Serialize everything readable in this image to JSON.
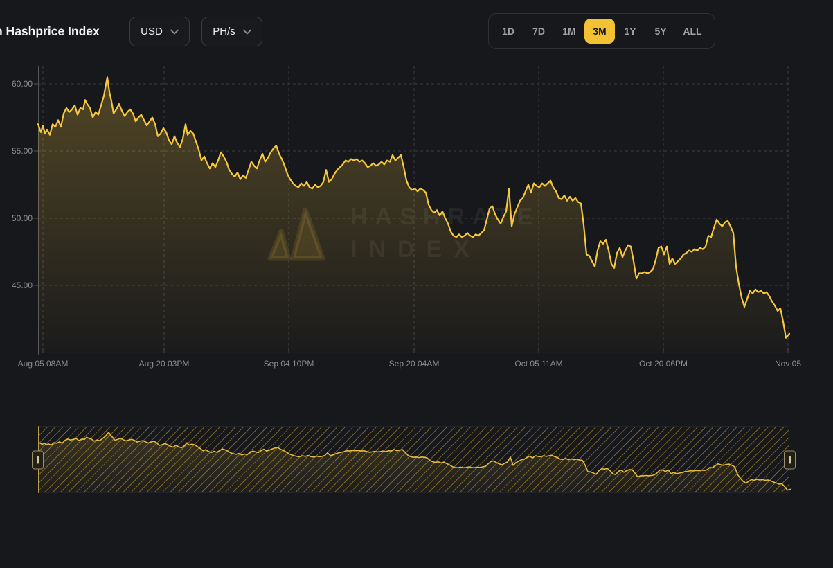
{
  "header": {
    "title": "n Hashprice Index",
    "currency_dropdown": {
      "value": "USD"
    },
    "unit_dropdown": {
      "value": "PH/s"
    },
    "range_buttons": [
      {
        "label": "1D",
        "active": false
      },
      {
        "label": "7D",
        "active": false
      },
      {
        "label": "1M",
        "active": false
      },
      {
        "label": "3M",
        "active": true
      },
      {
        "label": "1Y",
        "active": false
      },
      {
        "label": "5Y",
        "active": false
      },
      {
        "label": "ALL",
        "active": false
      }
    ]
  },
  "watermark": {
    "line1": "HASHRATE",
    "line2": "INDEX"
  },
  "colors": {
    "background": "#17181B",
    "accent_yellow": "#F2C233",
    "line_yellow": "#F7C83F",
    "navigator_line": "#E7BC3A",
    "grid": "#3C3D41",
    "axis_line": "#53545A",
    "axis_text": "#8B8D91",
    "active_button_text": "#1B1C1E",
    "inactive_button_text": "#A0A2A7"
  },
  "chart_data": {
    "type": "line",
    "title": "",
    "xlabel": "",
    "ylabel": "",
    "grid": "dashed",
    "legend": "none",
    "ylim": [
      40,
      61.3
    ],
    "y_axis": {
      "ticks": [
        {
          "label": "60.00",
          "value": 60
        },
        {
          "label": "55.00",
          "value": 55
        },
        {
          "label": "50.00",
          "value": 50
        },
        {
          "label": "45.00",
          "value": 45
        }
      ]
    },
    "x_axis": {
      "ticks": [
        {
          "label": "Aug 05 08AM",
          "x": 62
        },
        {
          "label": "Aug 20 03PM",
          "x": 237
        },
        {
          "label": "Sep 04 10PM",
          "x": 417
        },
        {
          "label": "Sep 20 04AM",
          "x": 598
        },
        {
          "label": "Oct 05 11AM",
          "x": 778
        },
        {
          "label": "Oct 20 06PM",
          "x": 958
        },
        {
          "label": "Nov 05",
          "x": 1138
        }
      ]
    },
    "series": [
      {
        "name": "hashprice",
        "points": [
          [
            55,
            57
          ],
          [
            59,
            56.4
          ],
          [
            62,
            56.9
          ],
          [
            65,
            56.3
          ],
          [
            68,
            56.6
          ],
          [
            72,
            56.2
          ],
          [
            76,
            57
          ],
          [
            80,
            56.8
          ],
          [
            84,
            57.3
          ],
          [
            88,
            56.8
          ],
          [
            92,
            57.8
          ],
          [
            96,
            58.2
          ],
          [
            100,
            57.9
          ],
          [
            104,
            58.1
          ],
          [
            108,
            58.4
          ],
          [
            112,
            57.7
          ],
          [
            116,
            58.2
          ],
          [
            120,
            58.1
          ],
          [
            123,
            58.8
          ],
          [
            126,
            58.5
          ],
          [
            130,
            58.2
          ],
          [
            134,
            57.5
          ],
          [
            138,
            57.9
          ],
          [
            142,
            57.7
          ],
          [
            146,
            58.4
          ],
          [
            150,
            59.1
          ],
          [
            155,
            60.5
          ],
          [
            158,
            59.4
          ],
          [
            161,
            58.7
          ],
          [
            164,
            57.8
          ],
          [
            168,
            58.1
          ],
          [
            172,
            58.5
          ],
          [
            176,
            58
          ],
          [
            180,
            57.6
          ],
          [
            184,
            57.9
          ],
          [
            188,
            58.1
          ],
          [
            192,
            57.8
          ],
          [
            196,
            57.2
          ],
          [
            200,
            57.5
          ],
          [
            204,
            57.7
          ],
          [
            208,
            57.3
          ],
          [
            212,
            56.9
          ],
          [
            216,
            57.2
          ],
          [
            220,
            57.5
          ],
          [
            224,
            57
          ],
          [
            228,
            56.1
          ],
          [
            232,
            56.3
          ],
          [
            236,
            56.7
          ],
          [
            240,
            56.4
          ],
          [
            244,
            55.8
          ],
          [
            248,
            55.5
          ],
          [
            252,
            56.1
          ],
          [
            256,
            55.6
          ],
          [
            260,
            55.3
          ],
          [
            264,
            55.9
          ],
          [
            268,
            57
          ],
          [
            271,
            56.2
          ],
          [
            275,
            56.5
          ],
          [
            279,
            56.3
          ],
          [
            283,
            55.7
          ],
          [
            287,
            55.1
          ],
          [
            291,
            54.3
          ],
          [
            295,
            54.6
          ],
          [
            299,
            54.1
          ],
          [
            303,
            53.7
          ],
          [
            307,
            54.1
          ],
          [
            311,
            53.8
          ],
          [
            315,
            54.3
          ],
          [
            319,
            54.9
          ],
          [
            323,
            54.6
          ],
          [
            327,
            54.2
          ],
          [
            331,
            53.6
          ],
          [
            335,
            53.3
          ],
          [
            339,
            53.1
          ],
          [
            343,
            53.4
          ],
          [
            347,
            52.9
          ],
          [
            351,
            53.2
          ],
          [
            355,
            53
          ],
          [
            359,
            53.6
          ],
          [
            363,
            54.2
          ],
          [
            367,
            53.9
          ],
          [
            371,
            53.7
          ],
          [
            375,
            54.3
          ],
          [
            379,
            54.8
          ],
          [
            383,
            54.2
          ],
          [
            387,
            54.5
          ],
          [
            391,
            54.9
          ],
          [
            395,
            55.2
          ],
          [
            399,
            55.4
          ],
          [
            403,
            54.8
          ],
          [
            407,
            54.4
          ],
          [
            411,
            53.9
          ],
          [
            415,
            53.3
          ],
          [
            419,
            52.9
          ],
          [
            423,
            52.6
          ],
          [
            427,
            52.4
          ],
          [
            431,
            52.3
          ],
          [
            435,
            52.6
          ],
          [
            439,
            52.4
          ],
          [
            443,
            52.7
          ],
          [
            447,
            52.3
          ],
          [
            451,
            52.2
          ],
          [
            455,
            52.5
          ],
          [
            459,
            52.3
          ],
          [
            463,
            52.4
          ],
          [
            467,
            52.7
          ],
          [
            471,
            53.6
          ],
          [
            475,
            52.7
          ],
          [
            479,
            52.9
          ],
          [
            483,
            53.3
          ],
          [
            487,
            53.6
          ],
          [
            491,
            53.8
          ],
          [
            495,
            54
          ],
          [
            499,
            54.3
          ],
          [
            503,
            54.2
          ],
          [
            507,
            54.4
          ],
          [
            511,
            54.3
          ],
          [
            515,
            54.4
          ],
          [
            519,
            54.2
          ],
          [
            523,
            54.3
          ],
          [
            527,
            54.1
          ],
          [
            531,
            53.8
          ],
          [
            535,
            53.9
          ],
          [
            539,
            54.1
          ],
          [
            543,
            53.9
          ],
          [
            547,
            54
          ],
          [
            551,
            54.2
          ],
          [
            555,
            54
          ],
          [
            559,
            54.3
          ],
          [
            563,
            54.2
          ],
          [
            567,
            54.7
          ],
          [
            571,
            54.3
          ],
          [
            575,
            54.5
          ],
          [
            579,
            54.7
          ],
          [
            583,
            53.8
          ],
          [
            587,
            52.8
          ],
          [
            591,
            52.3
          ],
          [
            595,
            52.1
          ],
          [
            599,
            52.2
          ],
          [
            603,
            52
          ],
          [
            607,
            52.2
          ],
          [
            611,
            52.1
          ],
          [
            615,
            51.9
          ],
          [
            619,
            51
          ],
          [
            623,
            50.6
          ],
          [
            627,
            50.4
          ],
          [
            631,
            50.6
          ],
          [
            635,
            50.2
          ],
          [
            639,
            50.5
          ],
          [
            643,
            50
          ],
          [
            647,
            49.6
          ],
          [
            651,
            49
          ],
          [
            655,
            48.7
          ],
          [
            659,
            48.6
          ],
          [
            663,
            48.8
          ],
          [
            667,
            48.6
          ],
          [
            671,
            48.7
          ],
          [
            675,
            48.9
          ],
          [
            679,
            48.7
          ],
          [
            683,
            48.6
          ],
          [
            687,
            48.8
          ],
          [
            691,
            48.7
          ],
          [
            695,
            48.9
          ],
          [
            699,
            49.1
          ],
          [
            703,
            49.9
          ],
          [
            707,
            50.7
          ],
          [
            711,
            50.9
          ],
          [
            715,
            50.3
          ],
          [
            719,
            49.9
          ],
          [
            723,
            49.6
          ],
          [
            727,
            50.1
          ],
          [
            731,
            50.5
          ],
          [
            735,
            52.2
          ],
          [
            739,
            49.4
          ],
          [
            743,
            50.3
          ],
          [
            747,
            50.8
          ],
          [
            751,
            51.3
          ],
          [
            755,
            51.5
          ],
          [
            759,
            52
          ],
          [
            763,
            52.5
          ],
          [
            767,
            51.9
          ],
          [
            771,
            52.6
          ],
          [
            775,
            52.4
          ],
          [
            779,
            52.3
          ],
          [
            783,
            52.6
          ],
          [
            787,
            52.4
          ],
          [
            791,
            52.6
          ],
          [
            795,
            52.8
          ],
          [
            799,
            52.3
          ],
          [
            803,
            52
          ],
          [
            807,
            51.5
          ],
          [
            811,
            51.4
          ],
          [
            815,
            51.7
          ],
          [
            819,
            51.3
          ],
          [
            823,
            51.6
          ],
          [
            827,
            51.3
          ],
          [
            831,
            51.5
          ],
          [
            835,
            51.2
          ],
          [
            839,
            51.1
          ],
          [
            843,
            49.5
          ],
          [
            847,
            47.3
          ],
          [
            851,
            47.2
          ],
          [
            855,
            46.8
          ],
          [
            859,
            46.4
          ],
          [
            863,
            47.6
          ],
          [
            867,
            48.3
          ],
          [
            871,
            48.1
          ],
          [
            875,
            48.4
          ],
          [
            879,
            47.6
          ],
          [
            883,
            46.6
          ],
          [
            887,
            46.3
          ],
          [
            891,
            47.4
          ],
          [
            895,
            47.8
          ],
          [
            899,
            47.1
          ],
          [
            903,
            47.6
          ],
          [
            907,
            48
          ],
          [
            911,
            47.9
          ],
          [
            915,
            46.8
          ],
          [
            919,
            45.5
          ],
          [
            923,
            45.9
          ],
          [
            927,
            45.9
          ],
          [
            931,
            46
          ],
          [
            935,
            45.9
          ],
          [
            939,
            46
          ],
          [
            943,
            46.2
          ],
          [
            947,
            46.9
          ],
          [
            951,
            47.8
          ],
          [
            955,
            47.9
          ],
          [
            959,
            47.3
          ],
          [
            963,
            47.9
          ],
          [
            967,
            46.6
          ],
          [
            971,
            47
          ],
          [
            975,
            46.6
          ],
          [
            979,
            46.8
          ],
          [
            983,
            47
          ],
          [
            987,
            47.3
          ],
          [
            991,
            47.4
          ],
          [
            995,
            47.6
          ],
          [
            999,
            47.5
          ],
          [
            1003,
            47.7
          ],
          [
            1007,
            47.6
          ],
          [
            1011,
            47.8
          ],
          [
            1015,
            47.7
          ],
          [
            1019,
            47.9
          ],
          [
            1023,
            48.7
          ],
          [
            1027,
            48.6
          ],
          [
            1031,
            49.3
          ],
          [
            1035,
            49.9
          ],
          [
            1039,
            49.6
          ],
          [
            1043,
            49.4
          ],
          [
            1047,
            49.7
          ],
          [
            1051,
            49.8
          ],
          [
            1055,
            49.4
          ],
          [
            1059,
            48.9
          ],
          [
            1063,
            46.4
          ],
          [
            1067,
            45.1
          ],
          [
            1071,
            44.1
          ],
          [
            1075,
            43.4
          ],
          [
            1079,
            44
          ],
          [
            1083,
            44.6
          ],
          [
            1087,
            44.4
          ],
          [
            1091,
            44.7
          ],
          [
            1095,
            44.5
          ],
          [
            1099,
            44.6
          ],
          [
            1103,
            44.4
          ],
          [
            1107,
            44.5
          ],
          [
            1111,
            44.2
          ],
          [
            1115,
            43.8
          ],
          [
            1119,
            43.5
          ],
          [
            1123,
            43.1
          ],
          [
            1127,
            43.3
          ],
          [
            1131,
            42.3
          ],
          [
            1135,
            41.1
          ],
          [
            1140,
            41.4
          ]
        ]
      }
    ]
  }
}
